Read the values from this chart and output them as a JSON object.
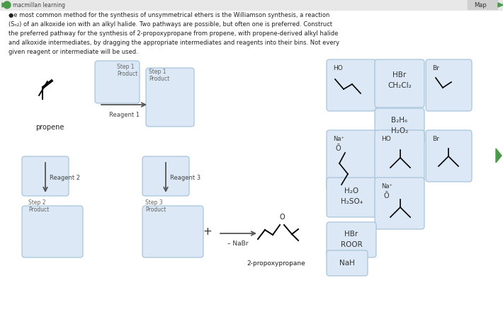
{
  "bg_color": "#ffffff",
  "box_fill": "#dce8f5",
  "box_edge": "#a0c0d8",
  "header_bg": "#e8e8e8",
  "title_text": "macmillan learning",
  "map_text": "Map",
  "propene_label": "propene",
  "reagent1_label": "Reagent 1",
  "reagent2_label": "Reagent 2",
  "reagent3_label": "Reagent 3",
  "step1_label": "Step 1\nProduct",
  "step2_label": "Step 2\nProduct",
  "step3_label": "Step 3\nProduct",
  "nabr_label": "– NaBr",
  "product_label": "2-propoxypropane"
}
